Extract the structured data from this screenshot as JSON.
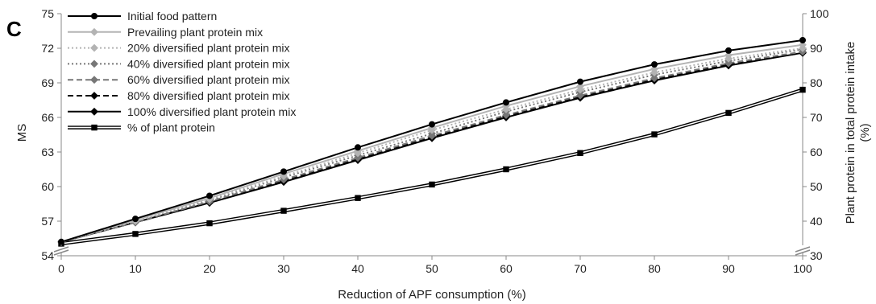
{
  "panel_label": "C",
  "chart_data": {
    "type": "line",
    "x": [
      0,
      10,
      20,
      30,
      40,
      50,
      60,
      70,
      80,
      90,
      100
    ],
    "xlabel": "Reduction of APF consumption (%)",
    "xlim": [
      0,
      100
    ],
    "xticks": [
      "0",
      "10",
      "20",
      "30",
      "40",
      "50",
      "60",
      "70",
      "80",
      "90",
      "100"
    ],
    "ylabel": "MS",
    "ylim": [
      54,
      75
    ],
    "yticks": [
      "54",
      "57",
      "60",
      "63",
      "66",
      "69",
      "72",
      "75"
    ],
    "y2label_line1": "Plant protein in total protein intake",
    "y2label_line2": "(%)",
    "y2lim": [
      30,
      100
    ],
    "y2ticks": [
      "30",
      "40",
      "50",
      "60",
      "70",
      "80",
      "90",
      "100"
    ],
    "axis_breaks": true,
    "grid": false,
    "legend_position": "top-left",
    "series": [
      {
        "name": "Initial food pattern",
        "axis": "left",
        "color": "#000000",
        "dash": "solid",
        "double": false,
        "marker": "circle",
        "values": [
          55.2,
          57.2,
          59.2,
          61.3,
          63.4,
          65.4,
          67.3,
          69.1,
          70.6,
          71.8,
          72.7
        ]
      },
      {
        "name": "Prevailing plant protein mix",
        "axis": "left",
        "color": "#b3b3b3",
        "dash": "solid",
        "double": false,
        "marker": "diamond",
        "values": [
          55.2,
          57.1,
          59.0,
          61.1,
          63.1,
          65.1,
          67.0,
          68.7,
          70.2,
          71.4,
          72.3
        ]
      },
      {
        "name": "20% diversified plant protein mix",
        "axis": "left",
        "color": "#b3b3b3",
        "dash": "dot",
        "double": false,
        "marker": "diamond",
        "values": [
          55.2,
          57.0,
          58.9,
          60.9,
          62.9,
          64.9,
          66.7,
          68.4,
          69.9,
          71.1,
          72.0
        ]
      },
      {
        "name": "40% diversified plant protein mix",
        "axis": "left",
        "color": "#777777",
        "dash": "dot",
        "double": false,
        "marker": "diamond",
        "values": [
          55.2,
          57.0,
          58.8,
          60.8,
          62.7,
          64.6,
          66.5,
          68.2,
          69.7,
          70.9,
          71.9
        ]
      },
      {
        "name": "60% diversified plant protein mix",
        "axis": "left",
        "color": "#777777",
        "dash": "dash",
        "double": false,
        "marker": "diamond",
        "values": [
          55.2,
          56.9,
          58.7,
          60.6,
          62.5,
          64.4,
          66.2,
          67.9,
          69.4,
          70.7,
          71.7
        ]
      },
      {
        "name": "80% diversified plant protein mix",
        "axis": "left",
        "color": "#000000",
        "dash": "dash",
        "double": false,
        "marker": "diamond",
        "values": [
          55.2,
          56.9,
          58.6,
          60.5,
          62.4,
          64.3,
          66.1,
          67.8,
          69.3,
          70.6,
          71.6
        ]
      },
      {
        "name": "100% diversified plant protein mix",
        "axis": "left",
        "color": "#000000",
        "dash": "solid",
        "double": false,
        "marker": "diamond",
        "values": [
          55.2,
          56.9,
          58.6,
          60.4,
          62.3,
          64.2,
          66.0,
          67.7,
          69.2,
          70.5,
          71.6
        ]
      },
      {
        "name": "% of plant protein",
        "axis": "right",
        "color": "#000000",
        "dash": "solid",
        "double": true,
        "marker": "square",
        "values": [
          33.5,
          36.3,
          39.4,
          43.0,
          46.7,
          50.6,
          55.0,
          59.7,
          65.1,
          71.3,
          78.0
        ]
      }
    ]
  }
}
